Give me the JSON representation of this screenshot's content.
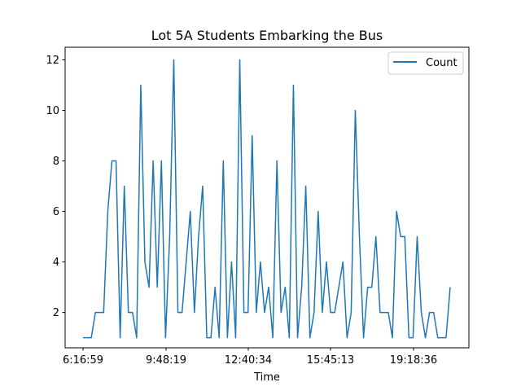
{
  "chart_data": {
    "type": "line",
    "title": "Lot 5A Students Embarking the Bus",
    "xlabel": "Time",
    "ylabel": "",
    "ylim": [
      0.6,
      12.5
    ],
    "yticks": [
      2,
      4,
      6,
      8,
      10,
      12
    ],
    "xticks": [
      "6:16:59",
      "9:48:19",
      "12:40:34",
      "15:45:13",
      "19:18:36"
    ],
    "legend": {
      "placement": "top-right",
      "entries": [
        "Count"
      ]
    },
    "grid": false,
    "colors": {
      "line": "#1f77b4",
      "axes": "#000000"
    },
    "series": [
      {
        "name": "Count",
        "values": [
          1,
          1,
          1,
          2,
          2,
          2,
          6,
          8,
          8,
          1,
          7,
          2,
          2,
          1,
          11,
          4,
          3,
          8,
          3,
          8,
          1,
          5,
          12,
          2,
          2,
          4,
          6,
          2,
          5,
          7,
          1,
          1,
          3,
          1,
          8,
          1,
          4,
          1,
          12,
          2,
          2,
          9,
          2,
          4,
          2,
          3,
          1,
          8,
          2,
          3,
          1,
          11,
          1,
          3,
          7,
          1,
          2,
          6,
          2,
          4,
          2,
          2,
          3,
          4,
          1,
          2,
          10,
          5,
          1,
          3,
          3,
          5,
          2,
          2,
          2,
          1,
          6,
          5,
          5,
          1,
          1,
          5,
          2,
          1,
          2,
          2,
          1,
          1,
          1,
          3
        ]
      }
    ]
  }
}
